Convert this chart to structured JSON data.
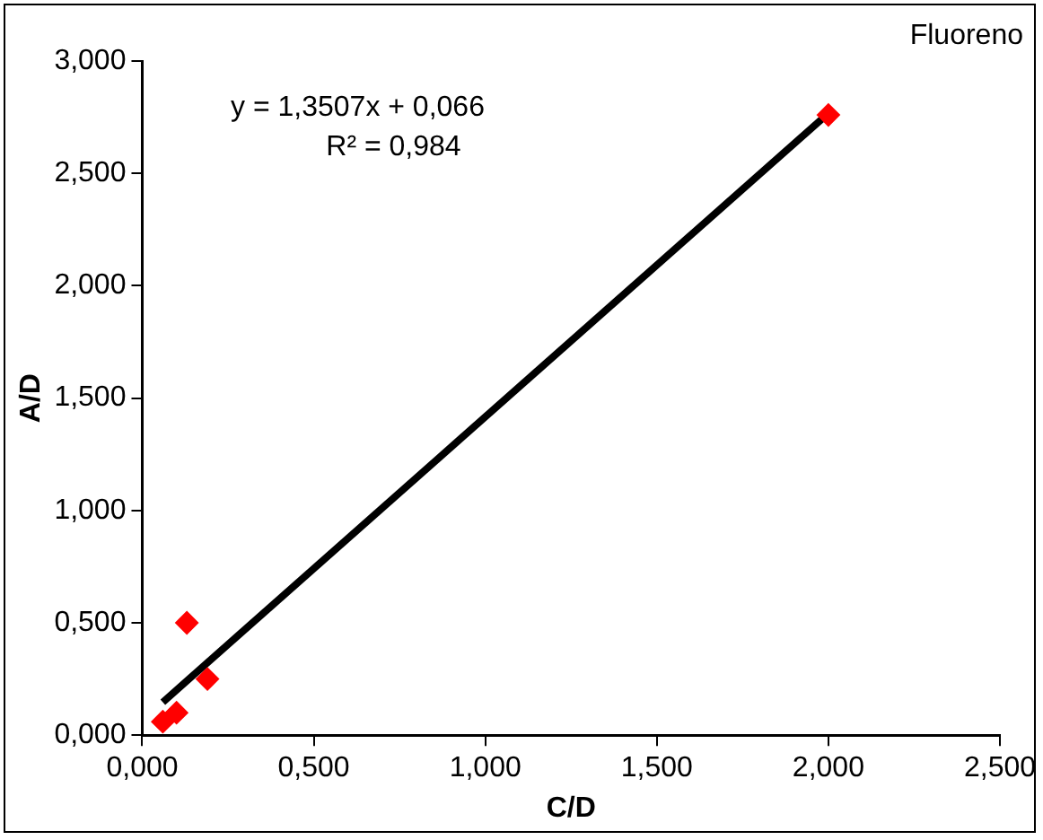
{
  "chart_data": {
    "type": "scatter",
    "title": "Fluoreno",
    "xlabel": "C/D",
    "ylabel": "A/D",
    "annotations": [
      "y = 1,3507x + 0,066",
      "R² = 0,984"
    ],
    "xlim": [
      0,
      2.5
    ],
    "ylim": [
      0,
      3
    ],
    "xticks": [
      {
        "value": 0,
        "label": "0,000"
      },
      {
        "value": 0.5,
        "label": "0,500"
      },
      {
        "value": 1,
        "label": "1,000"
      },
      {
        "value": 1.5,
        "label": "1,500"
      },
      {
        "value": 2,
        "label": "2,000"
      },
      {
        "value": 2.5,
        "label": "2,500"
      }
    ],
    "yticks": [
      {
        "value": 0,
        "label": "0,000"
      },
      {
        "value": 0.5,
        "label": "0,500"
      },
      {
        "value": 1,
        "label": "1,000"
      },
      {
        "value": 1.5,
        "label": "1,500"
      },
      {
        "value": 2,
        "label": "2,000"
      },
      {
        "value": 2.5,
        "label": "2,500"
      },
      {
        "value": 3,
        "label": "3,000"
      }
    ],
    "grid": false,
    "legend": false,
    "marker": "diamond",
    "series": [
      {
        "color": "#ff0000",
        "x": [
          0.06,
          0.1,
          0.13,
          0.19,
          2.0
        ],
        "values": [
          0.06,
          0.1,
          0.5,
          0.25,
          2.76
        ]
      },
      {
        "type": "line",
        "marker": "none",
        "color": "#000000",
        "x": [
          0.06,
          2.0
        ],
        "values": [
          0.147,
          2.767
        ]
      }
    ]
  }
}
